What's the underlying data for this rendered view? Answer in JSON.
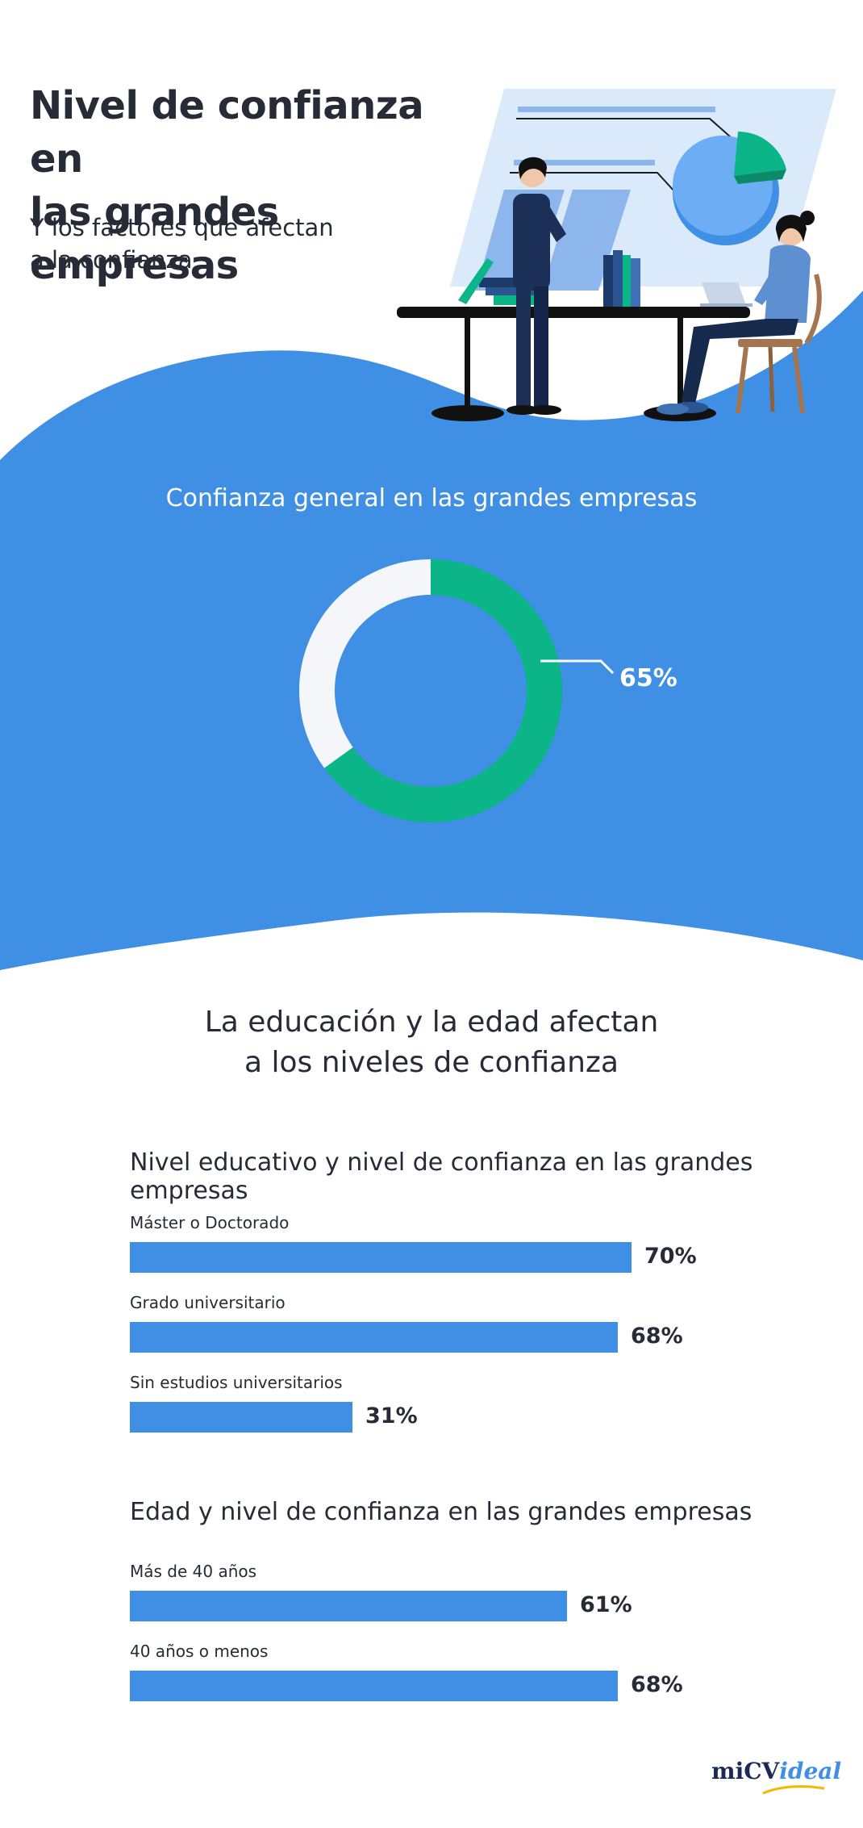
{
  "header": {
    "title_line1": "Nivel de confianza en",
    "title_line2": "las grandes empresas",
    "subtitle_line1": "Y los factores que afectan",
    "subtitle_line2": "a la confianza"
  },
  "colors": {
    "blue": "#3f8fe4",
    "green": "#0bb587",
    "light": "#f4f6f9",
    "text": "#262b36"
  },
  "chart_data": [
    {
      "type": "pie",
      "title": "Confianza general en las grandes empresas",
      "values": [
        65,
        35
      ],
      "value_label": "65%"
    },
    {
      "type": "bar",
      "orientation": "horizontal",
      "title": "Nivel educativo y nivel de confianza en las grandes empresas",
      "categories": [
        "Máster o Doctorado",
        "Grado universitario",
        "Sin estudios universitarios"
      ],
      "values": [
        70,
        68,
        31
      ],
      "labels": [
        "70%",
        "68%",
        "31%"
      ]
    },
    {
      "type": "bar",
      "orientation": "horizontal",
      "title": "Edad y nivel de confianza en las grandes empresas",
      "categories": [
        "Más de 40 años",
        "40 años o menos"
      ],
      "values": [
        61,
        68
      ],
      "labels": [
        "61%",
        "68%"
      ]
    }
  ],
  "section": {
    "title_line1": "La educación y la edad afectan",
    "title_line2": "a los niveles de confianza"
  },
  "logo": {
    "part1": "miCV",
    "part2": "ideal"
  }
}
